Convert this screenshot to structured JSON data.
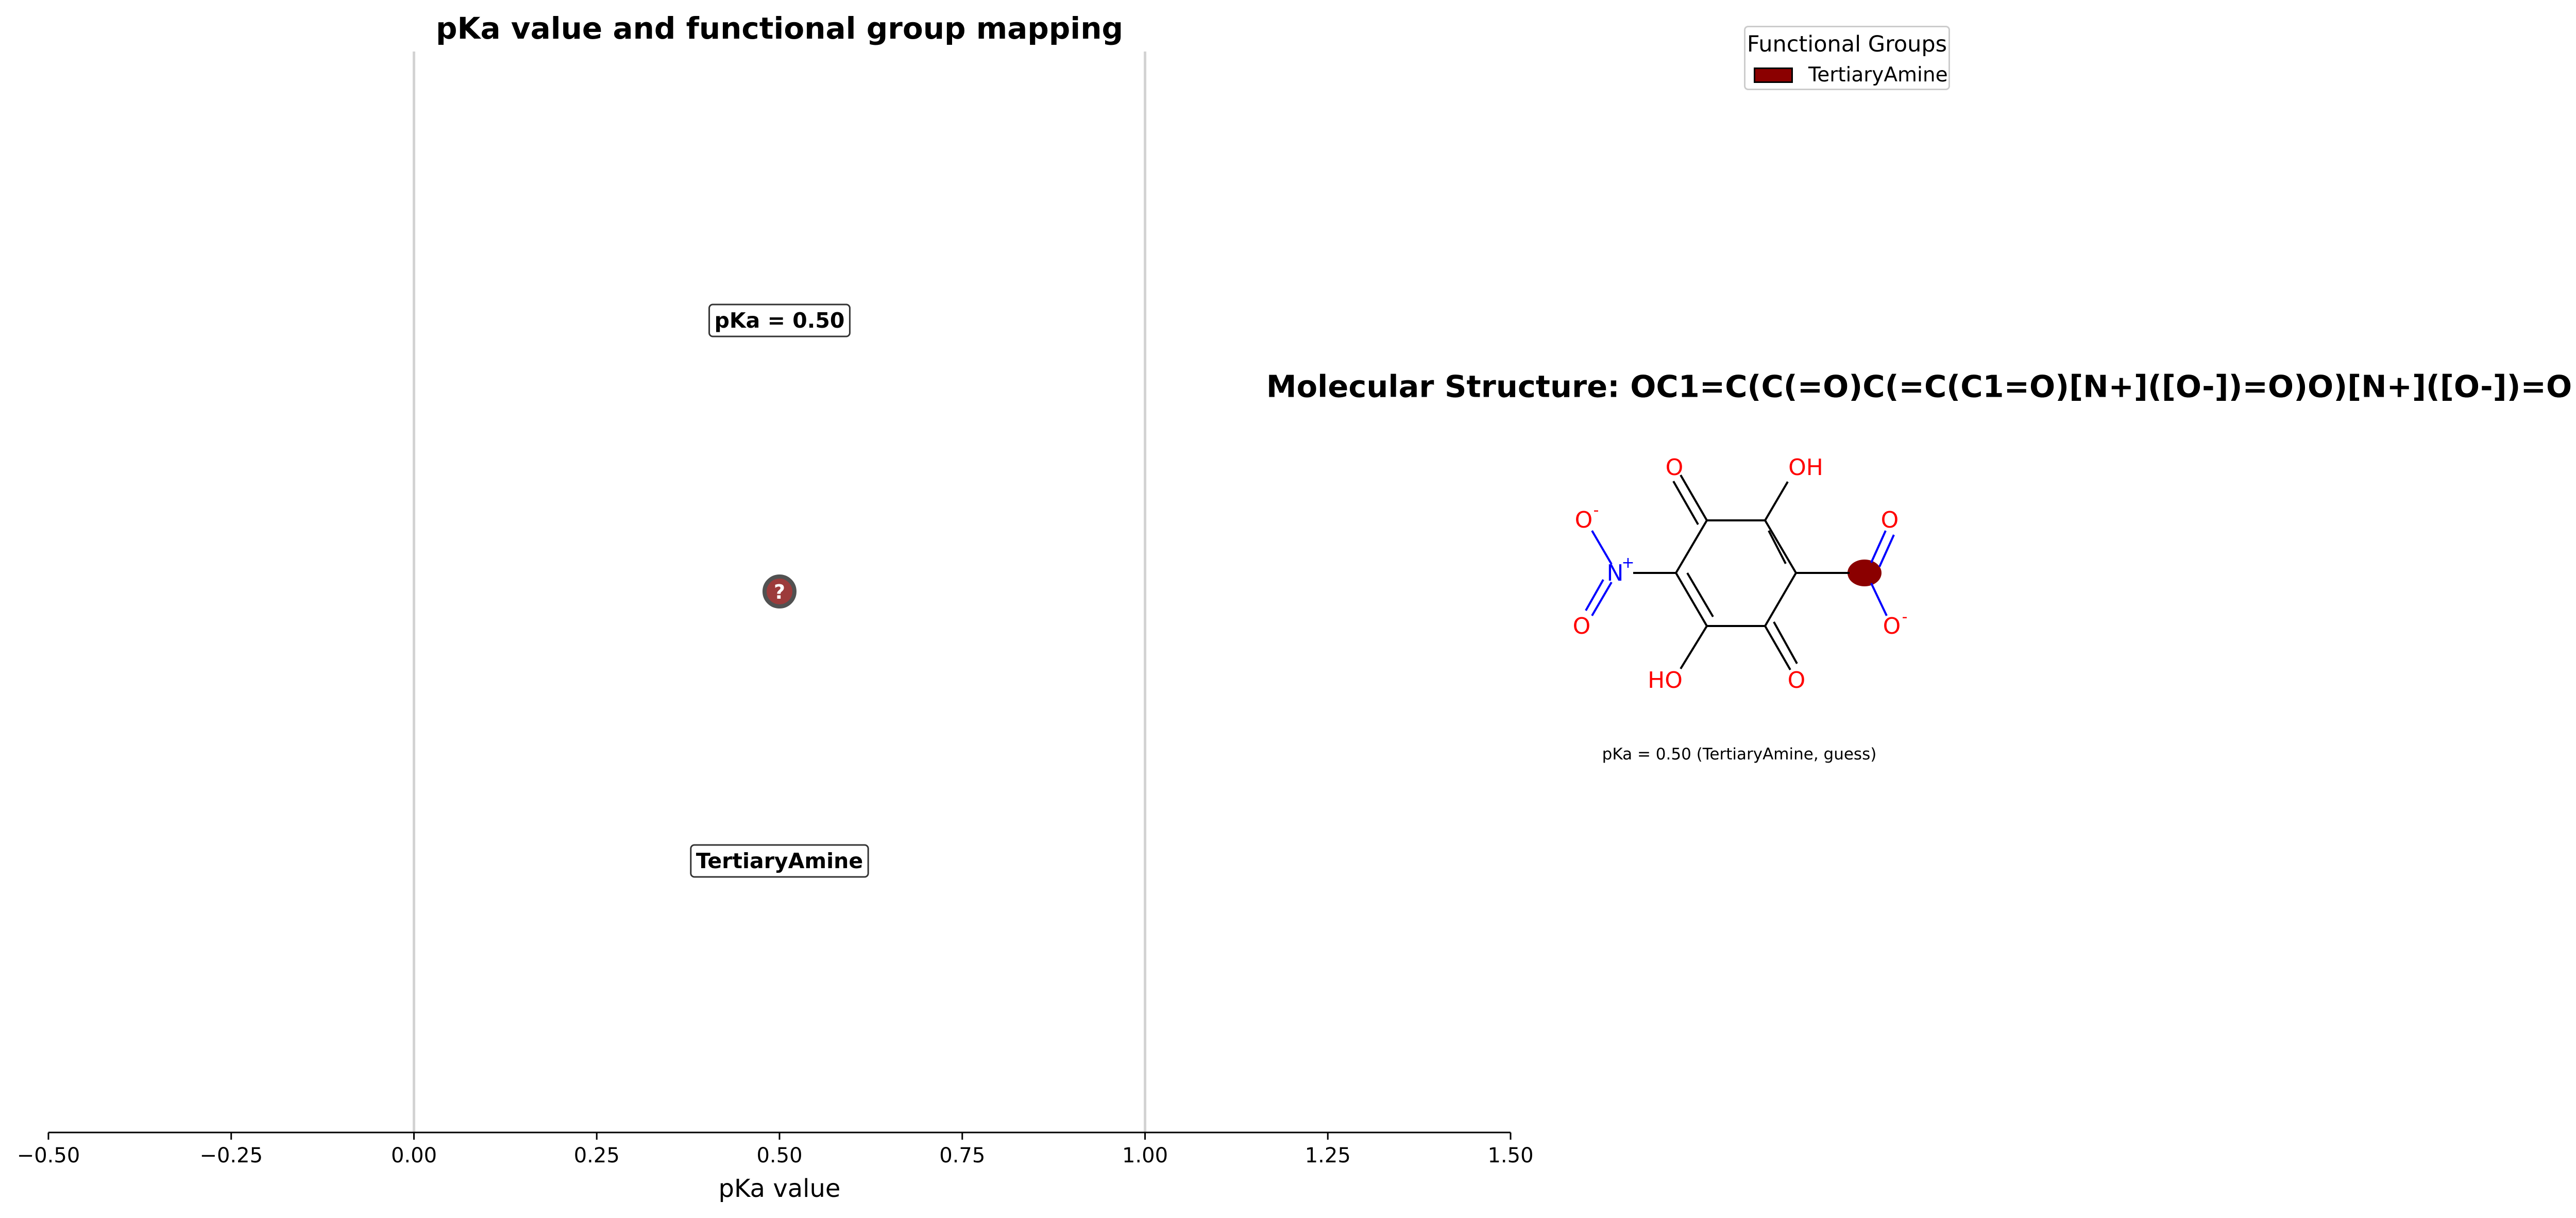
{
  "chart_data": {
    "type": "scatter",
    "title": "pKa value and functional group mapping",
    "xlabel": "pKa value",
    "xlim": [
      -0.5,
      1.5
    ],
    "x_ticks": [
      -0.5,
      -0.25,
      0.0,
      0.25,
      0.5,
      0.75,
      1.0,
      1.25,
      1.5
    ],
    "x_tick_labels": [
      "−0.50",
      "−0.25",
      "0.00",
      "0.25",
      "0.50",
      "0.75",
      "1.00",
      "1.25",
      "1.50"
    ],
    "reference_lines_x": [
      0.0,
      1.0
    ],
    "grid": false,
    "legend_placement": "top-right",
    "points": [
      {
        "x": 0.5,
        "marker": "?",
        "color": "#8b1a1a",
        "value_label": "pKa = 0.50",
        "group_label": "TertiaryAmine"
      }
    ]
  },
  "legend": {
    "title": "Functional Groups",
    "items": [
      {
        "label": "TertiaryAmine",
        "color": "#8b0000"
      }
    ]
  },
  "molecule": {
    "title": "Molecular Structure: OC1=C(C(=O)C(=C(C1=O)[N+]([O-])=O)O)[N+]([O-])=O",
    "caption": "pKa = 0.50 (TertiaryAmine, guess)",
    "highlight_color": "#8b0000",
    "atom_labels": {
      "o_top_left": "O",
      "oh_top_right": "OH",
      "o_minus_left": "O",
      "o_minus_left_charge": "-",
      "n_plus_left": "N",
      "n_plus_left_charge": "+",
      "o_left_bottom": "O",
      "o_right_top": "O",
      "o_minus_right": "O",
      "o_minus_right_charge": "-",
      "ho_bottom_left": "HO",
      "o_bottom_right": "O"
    }
  }
}
